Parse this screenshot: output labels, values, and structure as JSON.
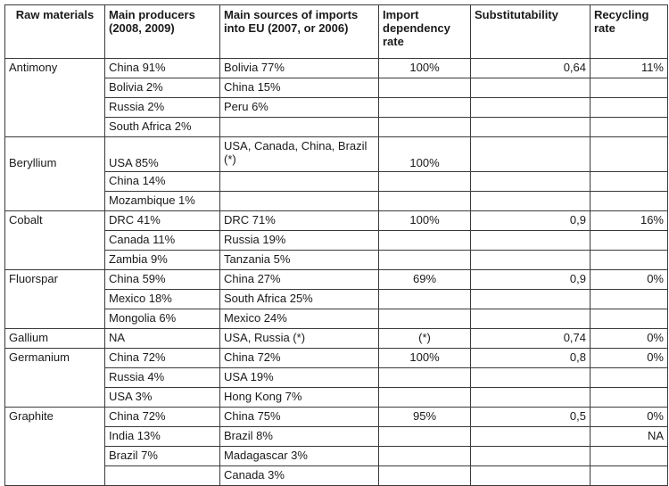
{
  "headers": {
    "raw": "Raw materials",
    "producers": "Main producers (2008, 2009)",
    "sources": "Main sources of imports into EU (2007, or 2006)",
    "import": "Import dependency rate",
    "subst": "Substitutability",
    "recycling": "Recycling rate"
  },
  "rows": [
    {
      "mat": "Antimony",
      "prod": [
        "China 91%",
        "Bolivia 2%",
        "Russia 2%",
        "South Africa 2%"
      ],
      "src": [
        "Bolivia 77%",
        "China 15%",
        "Peru 6%",
        ""
      ],
      "imp": "100%",
      "sub": "0,64",
      "rec": [
        "11%",
        "",
        "",
        ""
      ]
    },
    {
      "mat": "Beryllium",
      "prod": [
        "USA 85%",
        "China 14%",
        "Mozambique 1%"
      ],
      "src": [
        "USA, Canada, China, Brazil (*)",
        "",
        ""
      ],
      "imp": "100%",
      "sub": "",
      "rec": [
        "",
        "",
        ""
      ]
    },
    {
      "mat": "Cobalt",
      "prod": [
        "DRC 41%",
        "Canada 11%",
        "Zambia 9%"
      ],
      "src": [
        "DRC 71%",
        "Russia 19%",
        "Tanzania 5%"
      ],
      "imp": "100%",
      "sub": "0,9",
      "rec": [
        "16%",
        "",
        ""
      ]
    },
    {
      "mat": "Fluorspar",
      "prod": [
        "China 59%",
        "Mexico 18%",
        "Mongolia 6%"
      ],
      "src": [
        "China 27%",
        "South Africa 25%",
        "Mexico 24%"
      ],
      "imp": "69%",
      "sub": "0,9",
      "rec": [
        "0%",
        "",
        ""
      ]
    },
    {
      "mat": "Gallium",
      "prod": [
        "NA"
      ],
      "src": [
        "USA, Russia (*)"
      ],
      "imp": "(*)",
      "sub": "0,74",
      "rec": [
        "0%"
      ]
    },
    {
      "mat": "Germanium",
      "prod": [
        "China 72%",
        "Russia 4%",
        "USA 3%"
      ],
      "src": [
        "China 72%",
        "USA 19%",
        "Hong Kong 7%"
      ],
      "imp": "100%",
      "sub": "0,8",
      "rec": [
        "0%",
        "",
        ""
      ]
    },
    {
      "mat": "Graphite",
      "prod": [
        "China 72%",
        "India 13%",
        "Brazil 7%",
        ""
      ],
      "src": [
        "China 75%",
        "Brazil 8%",
        "Madagascar 3%",
        "Canada 3%"
      ],
      "imp": "95%",
      "sub": "0,5",
      "rec": [
        "0%",
        "NA",
        "",
        ""
      ]
    }
  ]
}
